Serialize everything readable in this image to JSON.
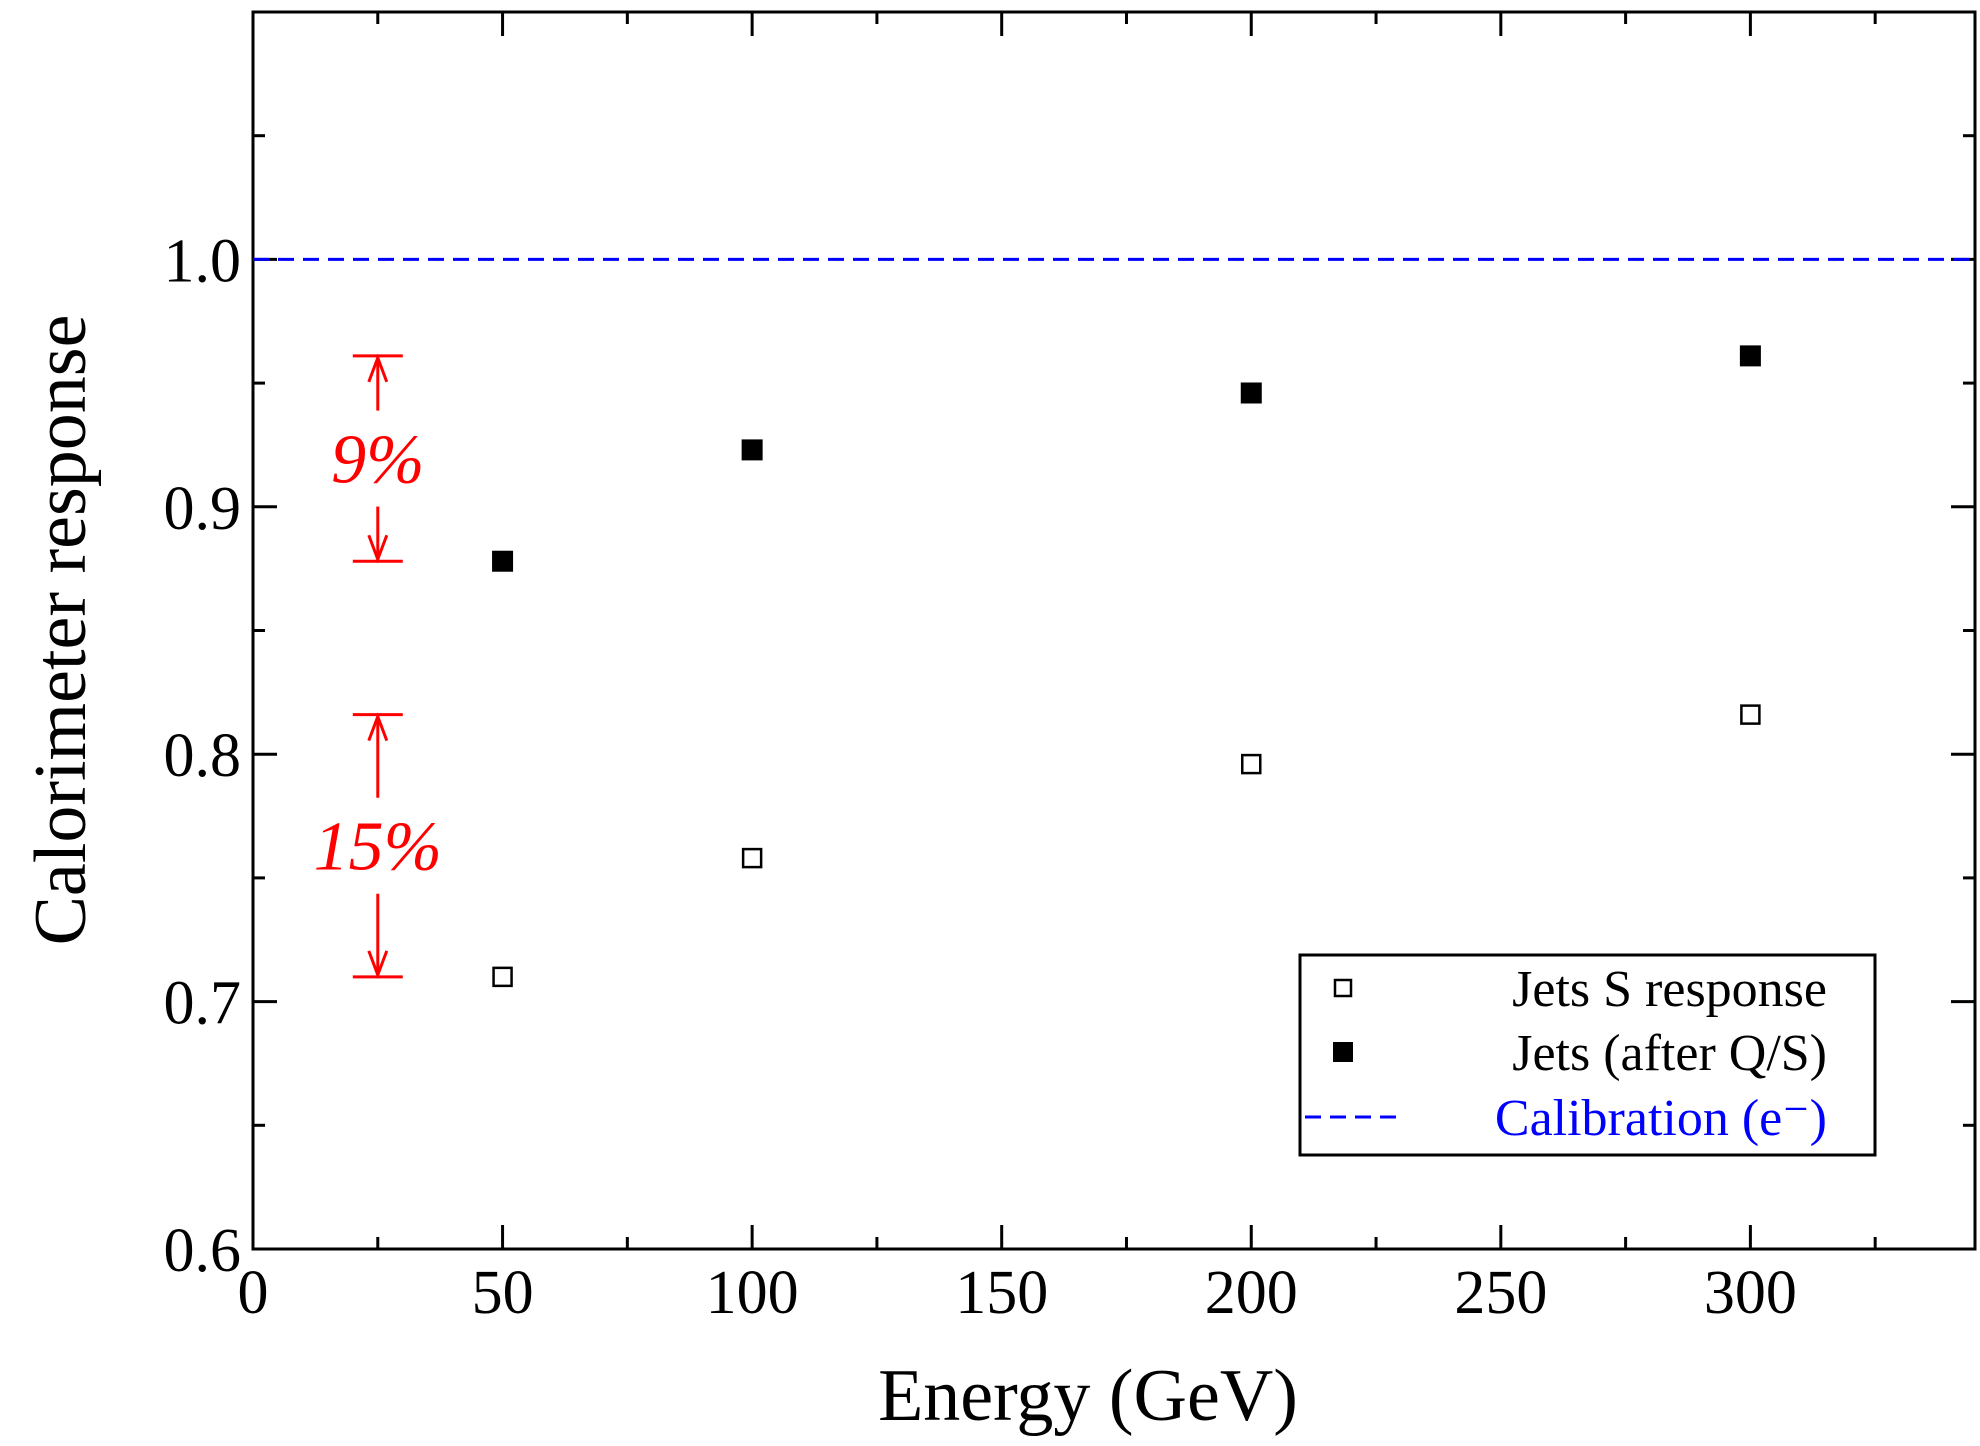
{
  "chart_data": {
    "type": "scatter",
    "title": "",
    "xlabel": "Energy (GeV)",
    "ylabel": "Calorimeter response",
    "xlim": [
      0,
      345
    ],
    "ylim": [
      0.6,
      1.1
    ],
    "xticks": [
      0,
      50,
      100,
      150,
      200,
      250,
      300
    ],
    "xtick_labels": [
      "0",
      "50",
      "100",
      "150",
      "200",
      "250",
      "300"
    ],
    "yticks": [
      0.6,
      0.7,
      0.8,
      0.9,
      1.0
    ],
    "ytick_labels": [
      "0.6",
      "0.7",
      "0.8",
      "0.9",
      "1.0"
    ],
    "y_minor_ticks": [
      0.65,
      0.75,
      0.85,
      0.95,
      1.05
    ],
    "x_minor_ticks": [
      25,
      75,
      125,
      175,
      225,
      275,
      325
    ],
    "grid": false,
    "legend_position": "bottom-right",
    "series": [
      {
        "name": "Jets S response",
        "marker": "open-square",
        "color": "#000000",
        "x": [
          50,
          100,
          200,
          300
        ],
        "y": [
          0.71,
          0.758,
          0.796,
          0.816
        ]
      },
      {
        "name": "Jets (after Q/S)",
        "marker": "filled-square",
        "color": "#000000",
        "x": [
          50,
          100,
          200,
          300
        ],
        "y": [
          0.878,
          0.923,
          0.946,
          0.961
        ]
      },
      {
        "name": "Calibration (e⁻)",
        "marker": "dashed-line",
        "color": "#0000ff",
        "x": [
          0,
          345
        ],
        "y": [
          1.0,
          1.0
        ]
      }
    ],
    "annotations": [
      {
        "label": "9%",
        "color": "#ff0000",
        "x": 25,
        "y_from": 0.878,
        "y_to": 0.961
      },
      {
        "label": "15%",
        "color": "#ff0000",
        "x": 25,
        "y_from": 0.71,
        "y_to": 0.816
      }
    ]
  }
}
